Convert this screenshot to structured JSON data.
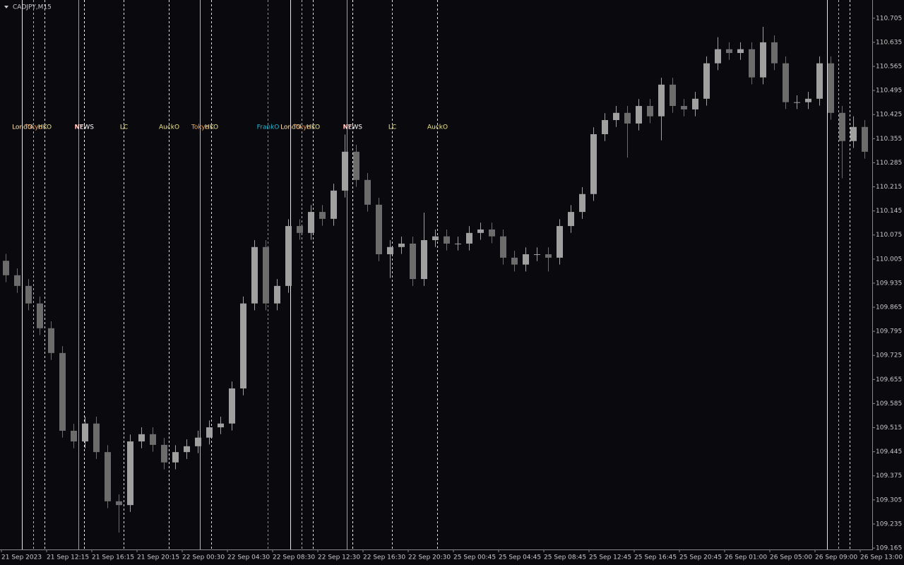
{
  "chart_data": {
    "type": "candlestick",
    "title": "CADJPY,M15",
    "open": [
      110.0,
      109.958,
      109.927,
      109.876,
      109.804,
      109.732,
      109.506,
      109.475,
      109.527,
      109.444,
      109.301,
      109.29,
      109.475,
      109.496,
      109.465,
      109.414,
      109.444,
      109.461,
      109.486,
      109.516,
      109.527,
      109.629,
      109.876,
      110.04,
      109.876,
      109.927,
      110.101,
      110.081,
      110.142,
      110.122,
      110.204,
      110.317,
      110.235,
      110.163,
      110.019,
      110.04,
      110.05,
      109.947,
      110.06,
      110.071,
      110.05,
      110.05,
      110.081,
      110.091,
      110.071,
      110.009,
      109.989,
      110.019,
      110.019,
      110.009,
      110.101,
      110.142,
      110.194,
      110.368,
      110.409,
      110.43,
      110.399,
      110.45,
      110.42,
      110.512,
      110.45,
      110.44,
      110.471,
      110.574,
      110.615,
      110.604,
      110.615,
      110.533,
      110.635,
      110.574,
      110.461,
      110.461,
      110.471,
      110.574,
      110.43,
      110.348,
      110.389
    ],
    "high": [
      110.02,
      109.978,
      109.947,
      109.896,
      109.824,
      109.752,
      109.526,
      109.547,
      109.547,
      109.464,
      109.321,
      109.495,
      109.516,
      109.516,
      109.485,
      109.464,
      109.481,
      109.506,
      109.536,
      109.547,
      109.649,
      109.896,
      110.06,
      110.06,
      109.947,
      110.121,
      110.121,
      110.162,
      110.162,
      110.224,
      110.367,
      110.337,
      110.255,
      110.183,
      110.06,
      110.07,
      110.07,
      110.14,
      110.091,
      110.091,
      110.07,
      110.101,
      110.111,
      110.111,
      110.091,
      110.029,
      110.039,
      110.039,
      110.039,
      110.121,
      110.162,
      110.214,
      110.388,
      110.429,
      110.45,
      110.45,
      110.47,
      110.47,
      110.532,
      110.532,
      110.47,
      110.491,
      110.594,
      110.65,
      110.635,
      110.635,
      110.635,
      110.68,
      110.655,
      110.594,
      110.481,
      110.491,
      110.594,
      110.594,
      110.45,
      110.42,
      110.409
    ],
    "low": [
      109.938,
      109.907,
      109.856,
      109.784,
      109.712,
      109.486,
      109.455,
      109.455,
      109.424,
      109.281,
      109.21,
      109.27,
      109.455,
      109.445,
      109.394,
      109.394,
      109.424,
      109.441,
      109.466,
      109.496,
      109.507,
      109.609,
      109.856,
      109.856,
      109.856,
      109.907,
      110.061,
      110.061,
      110.102,
      110.102,
      110.184,
      110.215,
      110.143,
      109.999,
      109.95,
      110.02,
      109.927,
      109.927,
      110.04,
      110.03,
      110.03,
      110.03,
      110.061,
      110.051,
      109.989,
      109.969,
      109.969,
      109.999,
      109.969,
      109.989,
      110.081,
      110.122,
      110.174,
      110.348,
      110.389,
      110.3,
      110.379,
      110.4,
      110.35,
      110.43,
      110.42,
      110.42,
      110.451,
      110.554,
      110.584,
      110.584,
      110.513,
      110.513,
      110.554,
      110.441,
      110.441,
      110.441,
      110.451,
      110.41,
      110.24,
      110.328,
      110.297
    ],
    "close": [
      109.958,
      109.927,
      109.876,
      109.804,
      109.732,
      109.506,
      109.475,
      109.527,
      109.444,
      109.301,
      109.29,
      109.475,
      109.496,
      109.465,
      109.414,
      109.444,
      109.461,
      109.486,
      109.516,
      109.527,
      109.629,
      109.876,
      110.04,
      109.876,
      109.927,
      110.101,
      110.081,
      110.142,
      110.122,
      110.204,
      110.317,
      110.235,
      110.163,
      110.019,
      110.04,
      110.05,
      109.947,
      110.06,
      110.071,
      110.05,
      110.05,
      110.081,
      110.091,
      110.071,
      110.009,
      109.989,
      110.019,
      110.019,
      110.009,
      110.101,
      110.142,
      110.194,
      110.368,
      110.409,
      110.43,
      110.399,
      110.45,
      110.42,
      110.512,
      110.45,
      110.44,
      110.471,
      110.574,
      110.615,
      110.604,
      110.615,
      110.533,
      110.635,
      110.574,
      110.461,
      110.461,
      110.471,
      110.574,
      110.43,
      110.348,
      110.389,
      110.317
    ],
    "up_color": "#a0a0a0",
    "down_color": "#6c6c6c",
    "ylim": [
      109.161,
      110.758
    ],
    "yticks": [
      110.705,
      110.635,
      110.565,
      110.495,
      110.425,
      110.355,
      110.285,
      110.215,
      110.145,
      110.075,
      110.005,
      109.935,
      109.865,
      109.795,
      109.725,
      109.655,
      109.585,
      109.515,
      109.445,
      109.375,
      109.305,
      109.235,
      109.165
    ],
    "x_labels": [
      "21 Sep 2023",
      "21 Sep 12:15",
      "21 Sep 16:15",
      "21 Sep 20:15",
      "22 Sep 00:30",
      "22 Sep 04:30",
      "22 Sep 08:30",
      "22 Sep 12:30",
      "22 Sep 16:30",
      "22 Sep 20:30",
      "25 Sep 00:45",
      "25 Sep 04:45",
      "25 Sep 08:45",
      "25 Sep 12:45",
      "25 Sep 16:45",
      "25 Sep 20:45",
      "26 Sep 01:00",
      "26 Sep 05:00",
      "26 Sep 09:00",
      "26 Sep 13:00"
    ],
    "sessions": [
      {
        "x": 7,
        "style": "solid",
        "color": "#ffe4b5",
        "label": "LondO"
      },
      {
        "x": 11,
        "style": "dashed",
        "color": "#f4a460",
        "label": "Tokyo"
      },
      {
        "x": 15,
        "style": "dashed",
        "color": "#f0e68c",
        "label": "HKO"
      },
      {
        "x": 27,
        "style": "solid",
        "color": "#f08070",
        "label": "NY"
      },
      {
        "x": 29,
        "style": "dashed",
        "color": "#ffffff",
        "label": "NEWS"
      },
      {
        "x": 43,
        "style": "dashed",
        "color": "#f0e68c",
        "label": "LC"
      },
      {
        "x": 59,
        "style": "dashed",
        "color": "#f0e68c",
        "label": "AuckO"
      },
      {
        "x": 70,
        "style": "solid",
        "color": "#f4a460",
        "label": "Tokyo"
      },
      {
        "x": 74,
        "style": "dashed",
        "color": "#f0e68c",
        "label": "HKO"
      },
      {
        "x": 94,
        "style": "dashed",
        "color": "#1fb8d8",
        "label": "FrankO"
      },
      {
        "x": 102,
        "style": "solid",
        "color": "#ffe4b5",
        "label": "LondO"
      },
      {
        "x": 106,
        "style": "dashed",
        "color": "#f4a460",
        "label": "Tokyo"
      },
      {
        "x": 110,
        "style": "dashed",
        "color": "#f0e68c",
        "label": "HKO"
      },
      {
        "x": 122,
        "style": "solid",
        "color": "#f08070",
        "label": "NY"
      },
      {
        "x": 124,
        "style": "dashed",
        "color": "#ffffff",
        "label": "NEWS"
      },
      {
        "x": 138,
        "style": "dashed",
        "color": "#f0e68c",
        "label": "LC"
      },
      {
        "x": 154,
        "style": "dashed",
        "color": "#f0e68c",
        "label": "AuckO"
      },
      {
        "x": 292,
        "style": "solid",
        "color": "#ffe4b5"
      },
      {
        "x": 296,
        "style": "dashed",
        "color": "#f4a460"
      },
      {
        "x": 300,
        "style": "dashed",
        "color": "#f0e68c"
      }
    ]
  }
}
